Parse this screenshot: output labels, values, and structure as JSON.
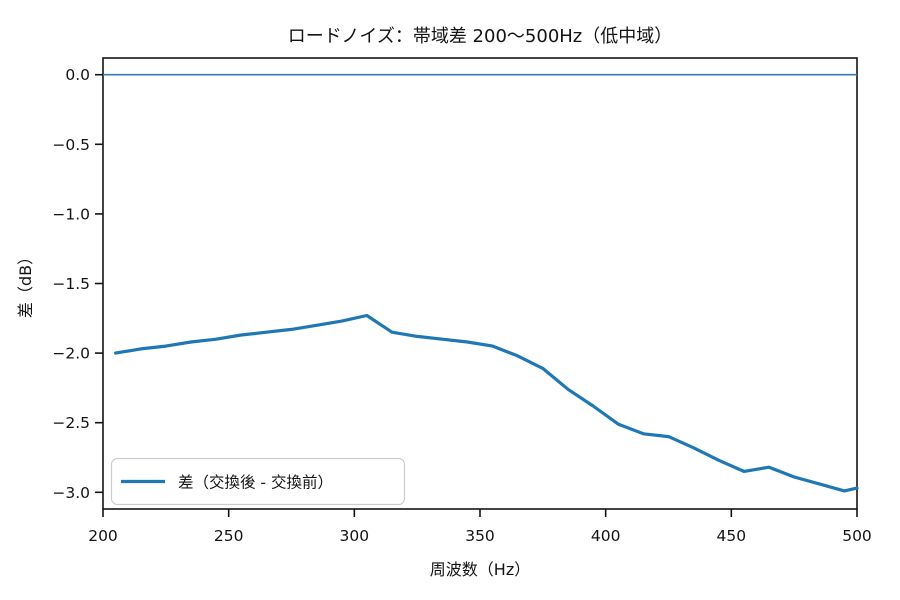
{
  "chart_data": {
    "type": "line",
    "title": "ロードノイズ：帯域差 200〜500Hz（低中域）",
    "xlabel": "周波数（Hz）",
    "ylabel": "差（dB）",
    "xlim": [
      200,
      500
    ],
    "ylim": [
      -3.12,
      0.12
    ],
    "x_ticks": [
      200,
      250,
      300,
      350,
      400,
      450,
      500
    ],
    "x_tick_labels": [
      "200",
      "250",
      "300",
      "350",
      "400",
      "450",
      "500"
    ],
    "y_ticks": [
      0.0,
      -0.5,
      -1.0,
      -1.5,
      -2.0,
      -2.5,
      -3.0
    ],
    "y_tick_labels": [
      "0.0",
      "−0.5",
      "−1.0",
      "−1.5",
      "−2.0",
      "−2.5",
      "−3.0"
    ],
    "grid": false,
    "legend_position": "lower left",
    "reference_line": {
      "y": 0.0,
      "color": "#2f7cb6",
      "width": 1.6
    },
    "series": [
      {
        "name": "差（交換後 - 交換前）",
        "color": "#1f77b4",
        "width": 3.2,
        "x": [
          205,
          215,
          225,
          235,
          245,
          255,
          265,
          275,
          285,
          295,
          305,
          315,
          325,
          335,
          345,
          355,
          365,
          375,
          385,
          395,
          405,
          415,
          425,
          435,
          445,
          455,
          465,
          475,
          485,
          495,
          500
        ],
        "y": [
          -2.0,
          -1.97,
          -1.95,
          -1.92,
          -1.9,
          -1.87,
          -1.85,
          -1.83,
          -1.8,
          -1.77,
          -1.73,
          -1.85,
          -1.88,
          -1.9,
          -1.92,
          -1.95,
          -2.02,
          -2.11,
          -2.26,
          -2.38,
          -2.51,
          -2.58,
          -2.6,
          -2.68,
          -2.77,
          -2.85,
          -2.82,
          -2.89,
          -2.94,
          -2.99,
          -2.97
        ]
      }
    ],
    "axis_color": "#141414"
  }
}
